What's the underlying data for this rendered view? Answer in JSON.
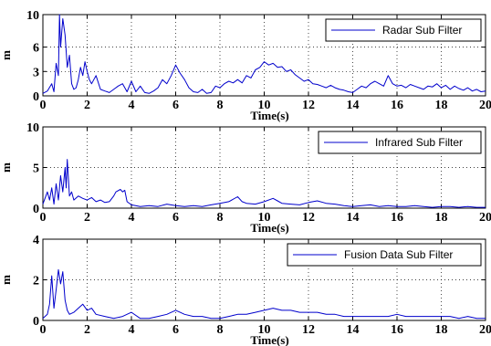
{
  "chart_data": [
    {
      "type": "line",
      "ylabel": "m",
      "xlabel": "Time(s)",
      "xlim": [
        0,
        20
      ],
      "ylim": [
        0,
        10
      ],
      "xticks": [
        0,
        2,
        4,
        6,
        8,
        10,
        12,
        14,
        16,
        18,
        20
      ],
      "yticks": [
        0,
        3,
        6,
        10
      ],
      "grid": true,
      "legend_position": "top-right",
      "series": [
        {
          "name": "Radar Sub Filter",
          "color": "#0000cc",
          "x": [
            0,
            0.2,
            0.4,
            0.5,
            0.6,
            0.7,
            0.75,
            0.8,
            0.9,
            1.0,
            1.1,
            1.2,
            1.3,
            1.4,
            1.5,
            1.6,
            1.7,
            1.8,
            1.9,
            2.0,
            2.1,
            2.2,
            2.4,
            2.6,
            2.8,
            3.0,
            3.2,
            3.4,
            3.6,
            3.8,
            4.0,
            4.2,
            4.4,
            4.6,
            4.8,
            5.0,
            5.2,
            5.4,
            5.6,
            5.8,
            6.0,
            6.2,
            6.4,
            6.6,
            6.8,
            7.0,
            7.2,
            7.4,
            7.6,
            7.8,
            8.0,
            8.2,
            8.4,
            8.6,
            8.8,
            9.0,
            9.2,
            9.4,
            9.6,
            9.8,
            10.0,
            10.2,
            10.4,
            10.6,
            10.8,
            11.0,
            11.2,
            11.4,
            11.6,
            11.8,
            12.0,
            12.2,
            12.4,
            12.6,
            12.8,
            13.0,
            13.2,
            13.4,
            13.6,
            13.8,
            14.0,
            14.2,
            14.4,
            14.6,
            14.8,
            15.0,
            15.2,
            15.4,
            15.6,
            15.8,
            16.0,
            16.2,
            16.4,
            16.6,
            16.8,
            17.0,
            17.2,
            17.4,
            17.6,
            17.8,
            18.0,
            18.2,
            18.4,
            18.6,
            18.8,
            19.0,
            19.2,
            19.4,
            19.6,
            19.8,
            20.0
          ],
          "y": [
            0.3,
            0.6,
            1.5,
            0.5,
            4.0,
            2.5,
            10.0,
            6.0,
            9.5,
            7.5,
            3.5,
            5.0,
            1.5,
            0.8,
            1.0,
            2.0,
            3.5,
            2.5,
            4.2,
            3.0,
            2.0,
            1.5,
            2.5,
            0.8,
            0.6,
            0.4,
            0.8,
            1.2,
            1.5,
            0.5,
            1.8,
            0.5,
            1.2,
            0.4,
            0.3,
            0.6,
            1.0,
            2.0,
            1.5,
            2.5,
            3.8,
            2.8,
            2.0,
            1.0,
            0.5,
            0.4,
            0.8,
            0.3,
            0.4,
            1.2,
            1.0,
            1.5,
            1.8,
            1.6,
            2.0,
            1.6,
            2.5,
            2.2,
            3.2,
            3.5,
            4.2,
            3.8,
            4.0,
            3.5,
            3.6,
            3.0,
            3.2,
            2.6,
            2.2,
            1.8,
            2.0,
            1.5,
            1.4,
            1.2,
            1.0,
            1.3,
            1.0,
            0.8,
            0.7,
            0.5,
            0.4,
            0.8,
            1.2,
            1.0,
            1.5,
            1.8,
            1.5,
            1.2,
            2.5,
            1.5,
            1.2,
            1.3,
            1.0,
            1.4,
            1.2,
            1.0,
            0.8,
            1.2,
            1.1,
            1.5,
            1.0,
            1.3,
            0.8,
            1.2,
            0.9,
            0.7,
            1.0,
            0.6,
            0.8,
            0.5,
            0.6
          ]
        }
      ]
    },
    {
      "type": "line",
      "ylabel": "m",
      "xlabel": "Time(s)",
      "xlim": [
        0,
        20
      ],
      "ylim": [
        0,
        10
      ],
      "xticks": [
        0,
        2,
        4,
        6,
        8,
        10,
        12,
        14,
        16,
        18,
        20
      ],
      "yticks": [
        0,
        5,
        10
      ],
      "grid": true,
      "legend_position": "top-right",
      "series": [
        {
          "name": "Infrared Sub Filter",
          "color": "#0000cc",
          "x": [
            0,
            0.2,
            0.3,
            0.4,
            0.5,
            0.6,
            0.7,
            0.8,
            0.9,
            1.0,
            1.05,
            1.1,
            1.2,
            1.3,
            1.4,
            1.6,
            1.8,
            2.0,
            2.2,
            2.4,
            2.6,
            2.8,
            3.0,
            3.2,
            3.3,
            3.5,
            3.6,
            3.7,
            3.8,
            4.0,
            4.4,
            4.8,
            5.2,
            5.6,
            6.0,
            6.4,
            6.8,
            7.2,
            7.6,
            8.0,
            8.4,
            8.8,
            9.0,
            9.2,
            9.6,
            10.0,
            10.4,
            10.6,
            10.8,
            11.2,
            11.6,
            12.0,
            12.4,
            12.8,
            13.2,
            13.6,
            14.0,
            14.4,
            14.8,
            15.2,
            15.6,
            16.0,
            16.4,
            16.8,
            17.2,
            17.6,
            18.0,
            18.4,
            18.8,
            19.2,
            19.6,
            20.0
          ],
          "y": [
            0.5,
            2.0,
            1.0,
            2.5,
            0.5,
            3.0,
            1.0,
            4.0,
            2.0,
            5.0,
            2.5,
            6.0,
            1.5,
            2.0,
            1.0,
            1.5,
            1.2,
            1.0,
            1.3,
            0.8,
            1.0,
            0.7,
            0.8,
            1.5,
            2.0,
            2.3,
            2.0,
            2.2,
            0.8,
            0.4,
            0.2,
            0.3,
            0.2,
            0.5,
            0.3,
            0.2,
            0.3,
            0.2,
            0.4,
            0.6,
            0.8,
            1.4,
            0.8,
            0.6,
            0.5,
            0.8,
            1.2,
            0.9,
            0.6,
            0.5,
            0.4,
            0.7,
            0.9,
            0.6,
            0.5,
            0.3,
            0.2,
            0.3,
            0.4,
            0.2,
            0.3,
            0.2,
            0.2,
            0.3,
            0.2,
            0.1,
            0.2,
            0.2,
            0.1,
            0.2,
            0.1,
            0.1
          ]
        }
      ]
    },
    {
      "type": "line",
      "ylabel": "m",
      "xlabel": "Time(s)",
      "xlim": [
        0,
        20
      ],
      "ylim": [
        0,
        4
      ],
      "xticks": [
        0,
        2,
        4,
        6,
        8,
        10,
        12,
        14,
        16,
        18,
        20
      ],
      "yticks": [
        0,
        2,
        4
      ],
      "grid": true,
      "legend_position": "top-right",
      "series": [
        {
          "name": "Fusion Data Sub Filter",
          "color": "#0000cc",
          "x": [
            0,
            0.2,
            0.3,
            0.4,
            0.5,
            0.6,
            0.7,
            0.8,
            0.9,
            1.0,
            1.1,
            1.2,
            1.4,
            1.6,
            1.8,
            2.0,
            2.2,
            2.4,
            2.8,
            3.2,
            3.6,
            4.0,
            4.4,
            4.8,
            5.2,
            5.6,
            6.0,
            6.2,
            6.4,
            6.8,
            7.2,
            7.6,
            8.0,
            8.4,
            8.8,
            9.2,
            9.6,
            10.0,
            10.4,
            10.8,
            11.2,
            11.6,
            12.0,
            12.4,
            12.8,
            13.2,
            13.6,
            14.0,
            14.4,
            14.8,
            15.2,
            15.6,
            16.0,
            16.4,
            16.8,
            17.2,
            17.6,
            18.0,
            18.4,
            18.8,
            19.2,
            19.6,
            20.0
          ],
          "y": [
            0.1,
            0.3,
            0.8,
            2.2,
            0.6,
            1.5,
            2.5,
            1.8,
            2.4,
            1.0,
            0.5,
            0.3,
            0.4,
            0.6,
            0.8,
            0.5,
            0.6,
            0.3,
            0.2,
            0.1,
            0.2,
            0.4,
            0.1,
            0.1,
            0.2,
            0.3,
            0.5,
            0.4,
            0.3,
            0.2,
            0.2,
            0.1,
            0.1,
            0.2,
            0.3,
            0.3,
            0.4,
            0.5,
            0.6,
            0.5,
            0.5,
            0.4,
            0.4,
            0.4,
            0.3,
            0.3,
            0.2,
            0.2,
            0.2,
            0.2,
            0.2,
            0.2,
            0.3,
            0.2,
            0.2,
            0.2,
            0.2,
            0.2,
            0.2,
            0.1,
            0.2,
            0.1,
            0.1
          ]
        }
      ]
    }
  ]
}
